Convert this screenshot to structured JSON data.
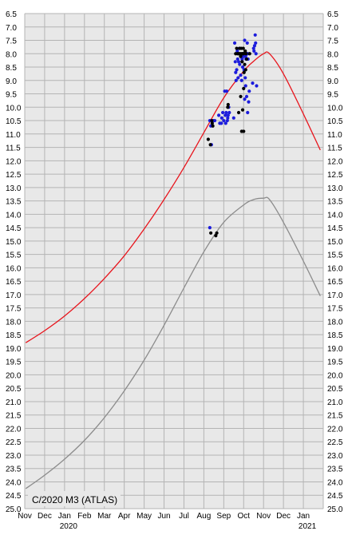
{
  "chart_data": {
    "type": "scatter",
    "title": "C/2020 M3 (ATLAS)",
    "y_axis": {
      "reversed": true,
      "min": 6.5,
      "max": 25.0,
      "step": 0.5,
      "tick_labels": [
        "6.5",
        "7.0",
        "7.5",
        "8.0",
        "8.5",
        "9.0",
        "9.5",
        "10.0",
        "10.5",
        "11.0",
        "11.5",
        "12.0",
        "12.5",
        "13.0",
        "13.5",
        "14.0",
        "14.5",
        "15.0",
        "15.5",
        "16.0",
        "16.5",
        "17.0",
        "17.5",
        "18.0",
        "18.5",
        "19.0",
        "19.5",
        "20.0",
        "20.5",
        "21.0",
        "21.5",
        "22.0",
        "22.5",
        "23.0",
        "23.5",
        "24.0",
        "24.5",
        "25.0"
      ],
      "labels_on_both_sides": true
    },
    "x_axis": {
      "min_month": 0,
      "max_month": 15,
      "tick_labels": [
        "Nov",
        "Dec",
        "Jan",
        "Feb",
        "Mar",
        "Apr",
        "May",
        "Jun",
        "Jul",
        "Aug",
        "Sep",
        "Oct",
        "Nov",
        "Dec",
        "Jan"
      ],
      "year_labels": [
        {
          "text": "2020",
          "month": 2.2
        },
        {
          "text": "2021",
          "month": 14.2
        }
      ]
    },
    "grid": true,
    "colors": {
      "plot_background": "#e8e8e8",
      "grid": "#b4b4b4",
      "total_magnitude_curve": "#e8141c",
      "nuclear_magnitude_curve": "#8c8c8c",
      "observations_blue": "#1c1cdc",
      "observations_black": "#000000",
      "tick_text": "#000000"
    },
    "series": [
      {
        "kind": "line",
        "color_key": "total_magnitude_curve",
        "points": [
          [
            0.05,
            18.8
          ],
          [
            1,
            18.35
          ],
          [
            2,
            17.8
          ],
          [
            3,
            17.15
          ],
          [
            4,
            16.4
          ],
          [
            5,
            15.55
          ],
          [
            6,
            14.55
          ],
          [
            7,
            13.45
          ],
          [
            8,
            12.25
          ],
          [
            9,
            10.95
          ],
          [
            10,
            9.65
          ],
          [
            11,
            8.65
          ],
          [
            11.5,
            8.28
          ],
          [
            12,
            8.0
          ],
          [
            12.3,
            8.0
          ],
          [
            13,
            8.75
          ],
          [
            14,
            10.25
          ],
          [
            14.85,
            11.6
          ]
        ]
      },
      {
        "kind": "line",
        "color_key": "nuclear_magnitude_curve",
        "points": [
          [
            0.05,
            24.25
          ],
          [
            1,
            23.75
          ],
          [
            2,
            23.15
          ],
          [
            3,
            22.45
          ],
          [
            4,
            21.6
          ],
          [
            5,
            20.6
          ],
          [
            6,
            19.45
          ],
          [
            7,
            18.15
          ],
          [
            8,
            16.75
          ],
          [
            9,
            15.4
          ],
          [
            10,
            14.3
          ],
          [
            11,
            13.65
          ],
          [
            11.5,
            13.45
          ],
          [
            12,
            13.4
          ],
          [
            12.3,
            13.45
          ],
          [
            13,
            14.3
          ],
          [
            14,
            15.75
          ],
          [
            14.85,
            17.05
          ]
        ]
      },
      {
        "kind": "scatter",
        "color_key": "observations_blue",
        "points": [
          [
            9.3,
            14.5
          ],
          [
            9.3,
            10.5
          ],
          [
            9.35,
            10.7
          ],
          [
            9.38,
            11.4
          ],
          [
            9.48,
            10.5
          ],
          [
            9.55,
            10.5
          ],
          [
            9.75,
            10.3
          ],
          [
            9.8,
            10.6
          ],
          [
            9.88,
            10.6
          ],
          [
            9.9,
            10.4
          ],
          [
            9.95,
            10.2
          ],
          [
            10.0,
            10.5
          ],
          [
            10.05,
            9.4
          ],
          [
            10.08,
            10.3
          ],
          [
            10.1,
            10.6
          ],
          [
            10.12,
            10.2
          ],
          [
            10.15,
            9.4
          ],
          [
            10.18,
            10.5
          ],
          [
            10.2,
            10.4
          ],
          [
            10.22,
            10.3
          ],
          [
            10.25,
            10.0
          ],
          [
            10.28,
            10.2
          ],
          [
            10.5,
            10.4
          ],
          [
            10.55,
            7.6
          ],
          [
            10.58,
            8.3
          ],
          [
            10.6,
            8.7
          ],
          [
            10.62,
            9.0
          ],
          [
            10.65,
            8.6
          ],
          [
            10.68,
            7.9
          ],
          [
            10.7,
            8.2
          ],
          [
            10.72,
            8.9
          ],
          [
            10.75,
            8.3
          ],
          [
            10.78,
            7.8
          ],
          [
            10.8,
            8.4
          ],
          [
            10.82,
            8.0
          ],
          [
            10.85,
            8.8
          ],
          [
            10.88,
            8.1
          ],
          [
            10.9,
            9.0
          ],
          [
            10.92,
            8.2
          ],
          [
            10.95,
            8.5
          ],
          [
            10.98,
            8.0
          ],
          [
            11.0,
            8.1
          ],
          [
            11.02,
            8.6
          ],
          [
            11.05,
            7.5
          ],
          [
            11.08,
            8.9
          ],
          [
            11.1,
            8.1
          ],
          [
            11.12,
            8.2
          ],
          [
            11.15,
            8.0
          ],
          [
            11.18,
            7.6
          ],
          [
            11.2,
            8.0
          ],
          [
            11.22,
            8.2
          ],
          [
            11.05,
            9.7
          ],
          [
            11.1,
            9.2
          ],
          [
            11.15,
            9.6
          ],
          [
            11.2,
            10.2
          ],
          [
            11.25,
            9.8
          ],
          [
            11.28,
            9.4
          ],
          [
            11.45,
            9.1
          ],
          [
            11.5,
            7.8
          ],
          [
            11.52,
            7.9
          ],
          [
            11.55,
            7.7
          ],
          [
            11.58,
            7.3
          ],
          [
            11.6,
            7.6
          ],
          [
            11.62,
            8.0
          ],
          [
            11.65,
            9.2
          ]
        ]
      },
      {
        "kind": "scatter",
        "color_key": "observations_black",
        "points": [
          [
            9.35,
            14.7
          ],
          [
            9.22,
            11.2
          ],
          [
            9.33,
            11.4
          ],
          [
            9.4,
            10.5
          ],
          [
            9.42,
            10.6
          ],
          [
            9.45,
            10.7
          ],
          [
            9.6,
            14.8
          ],
          [
            9.65,
            14.7
          ],
          [
            10.2,
            10.0
          ],
          [
            10.22,
            9.9
          ],
          [
            10.6,
            8.0
          ],
          [
            10.65,
            7.8
          ],
          [
            10.7,
            8.0
          ],
          [
            10.75,
            8.0
          ],
          [
            10.8,
            7.8
          ],
          [
            10.82,
            8.0
          ],
          [
            10.85,
            8.1
          ],
          [
            10.88,
            7.8
          ],
          [
            10.9,
            8.0
          ],
          [
            10.92,
            8.3
          ],
          [
            10.95,
            8.0
          ],
          [
            10.98,
            7.8
          ],
          [
            11.0,
            8.0
          ],
          [
            11.02,
            8.7
          ],
          [
            11.05,
            8.4
          ],
          [
            11.08,
            7.9
          ],
          [
            11.1,
            8.6
          ],
          [
            11.12,
            8.0
          ],
          [
            11.15,
            8.2
          ],
          [
            10.75,
            10.2
          ],
          [
            10.85,
            9.6
          ],
          [
            10.9,
            10.9
          ],
          [
            11.0,
            10.9
          ],
          [
            10.95,
            10.1
          ],
          [
            11.0,
            9.3
          ],
          [
            11.3,
            8.0
          ]
        ]
      }
    ]
  }
}
